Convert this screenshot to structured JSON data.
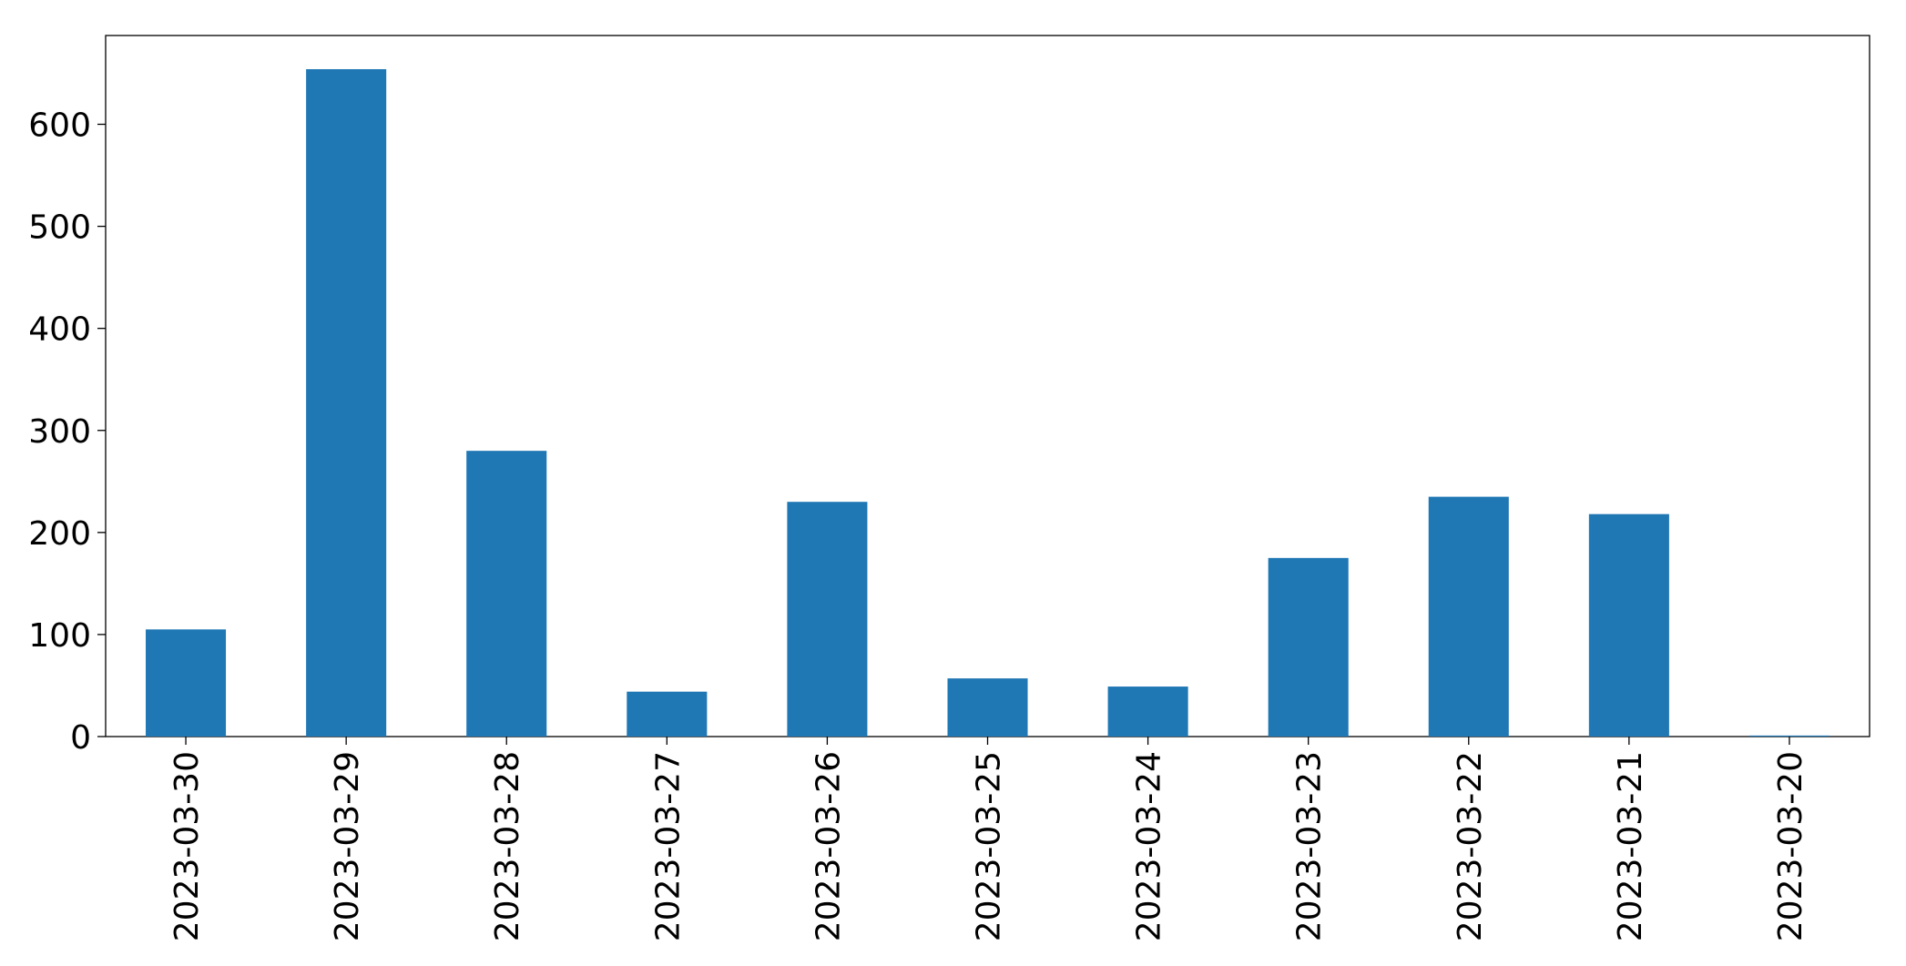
{
  "chart_data": {
    "type": "bar",
    "categories": [
      "2023-03-30",
      "2023-03-29",
      "2023-03-28",
      "2023-03-27",
      "2023-03-26",
      "2023-03-25",
      "2023-03-24",
      "2023-03-23",
      "2023-03-22",
      "2023-03-21",
      "2023-03-20"
    ],
    "values": [
      105,
      654,
      280,
      44,
      230,
      57,
      49,
      175,
      235,
      218,
      1
    ],
    "color": "#1f77b4",
    "ylim": [
      0,
      687
    ],
    "yticks": [
      0,
      100,
      200,
      300,
      400,
      500,
      600
    ],
    "grid": false
  }
}
